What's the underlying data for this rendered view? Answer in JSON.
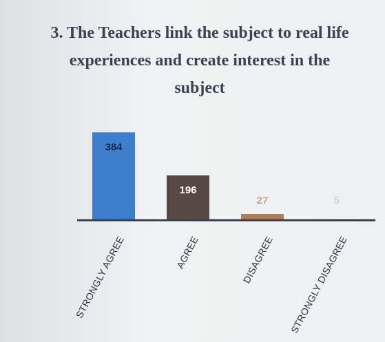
{
  "chart_data": {
    "type": "bar",
    "title": "3. The Teachers link the subject to real life experiences and create interest in the subject",
    "categories": [
      "STRONGLY AGREE",
      "AGREE",
      "DISAGREE",
      "STRONGLY DISAGREE"
    ],
    "values": [
      384,
      196,
      27,
      5
    ],
    "colors": [
      "#3d7fcd",
      "#574843",
      "#b27a55",
      "#c9c0bb"
    ],
    "ylim": [
      0,
      400
    ]
  }
}
